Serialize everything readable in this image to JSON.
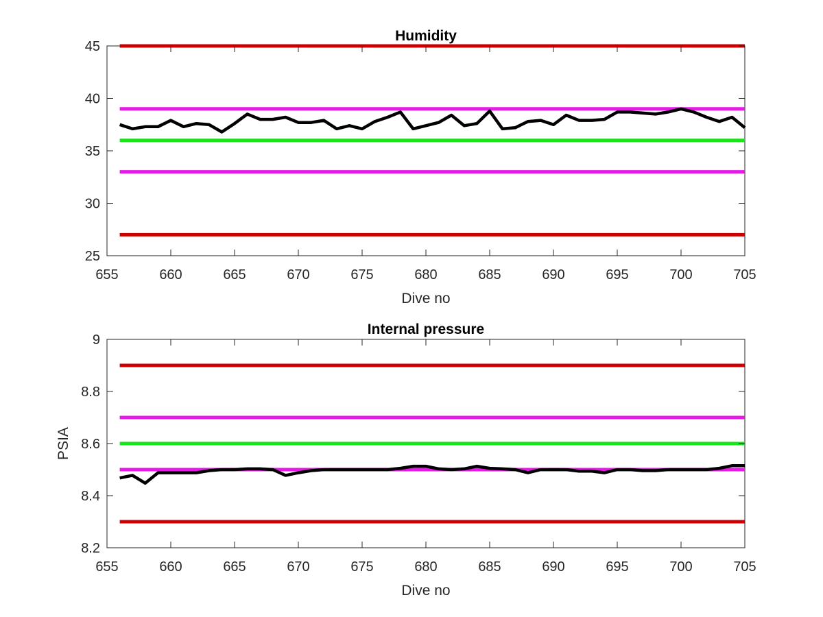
{
  "chart_data": [
    {
      "type": "line",
      "title": "Humidity",
      "xlabel": "Dive no",
      "ylabel": "",
      "xlim": [
        655,
        705
      ],
      "ylim": [
        25,
        45
      ],
      "xticks": [
        "655",
        "660",
        "665",
        "670",
        "675",
        "680",
        "685",
        "690",
        "695",
        "700",
        "705"
      ],
      "yticks": [
        "25",
        "30",
        "35",
        "40",
        "45"
      ],
      "grid": false,
      "series": [
        {
          "x": [
            656,
            657,
            658,
            659,
            660,
            661,
            662,
            663,
            664,
            665,
            666,
            667,
            668,
            669,
            670,
            671,
            672,
            673,
            674,
            675,
            676,
            677,
            678,
            679,
            680,
            681,
            682,
            683,
            684,
            685,
            686,
            687,
            688,
            689,
            690,
            691,
            692,
            693,
            694,
            695,
            696,
            697,
            698,
            699,
            700,
            701,
            702,
            703,
            704,
            705
          ],
          "values": [
            37.5,
            37.1,
            37.3,
            37.3,
            37.9,
            37.3,
            37.6,
            37.5,
            36.8,
            37.6,
            38.5,
            38.0,
            38.0,
            38.2,
            37.7,
            37.7,
            37.9,
            37.1,
            37.4,
            37.1,
            37.8,
            38.2,
            38.7,
            37.1,
            37.4,
            37.7,
            38.4,
            37.4,
            37.6,
            38.8,
            37.1,
            37.2,
            37.8,
            37.9,
            37.5,
            38.4,
            37.9,
            37.9,
            38.0,
            38.7,
            38.7,
            38.6,
            38.5,
            38.7,
            39.0,
            38.7,
            38.2,
            37.8,
            38.2,
            37.2
          ],
          "color": "#000000"
        }
      ],
      "reference_lines": [
        {
          "y": 45,
          "color": "#cc0000"
        },
        {
          "y": 39,
          "color": "#e619e6"
        },
        {
          "y": 36,
          "color": "#19e619"
        },
        {
          "y": 33,
          "color": "#e619e6"
        },
        {
          "y": 27,
          "color": "#cc0000"
        }
      ]
    },
    {
      "type": "line",
      "title": "Internal pressure",
      "xlabel": "Dive no",
      "ylabel": "PSIA",
      "xlim": [
        655,
        705
      ],
      "ylim": [
        8.2,
        9.0
      ],
      "xticks": [
        "655",
        "660",
        "665",
        "670",
        "675",
        "680",
        "685",
        "690",
        "695",
        "700",
        "705"
      ],
      "yticks": [
        "8.2",
        "8.4",
        "8.6",
        "8.8",
        "9"
      ],
      "grid": false,
      "series": [
        {
          "x": [
            656,
            657,
            658,
            659,
            660,
            661,
            662,
            663,
            664,
            665,
            666,
            667,
            668,
            669,
            670,
            671,
            672,
            673,
            674,
            675,
            676,
            677,
            678,
            679,
            680,
            681,
            682,
            683,
            684,
            685,
            686,
            687,
            688,
            689,
            690,
            691,
            692,
            693,
            694,
            695,
            696,
            697,
            698,
            699,
            700,
            701,
            702,
            703,
            704,
            705
          ],
          "values": [
            8.468,
            8.478,
            8.448,
            8.488,
            8.488,
            8.488,
            8.488,
            8.496,
            8.5,
            8.5,
            8.503,
            8.503,
            8.5,
            8.478,
            8.488,
            8.496,
            8.5,
            8.5,
            8.5,
            8.5,
            8.5,
            8.5,
            8.505,
            8.513,
            8.513,
            8.503,
            8.5,
            8.503,
            8.513,
            8.505,
            8.503,
            8.5,
            8.488,
            8.5,
            8.5,
            8.5,
            8.494,
            8.494,
            8.488,
            8.5,
            8.5,
            8.496,
            8.496,
            8.5,
            8.5,
            8.5,
            8.5,
            8.505,
            8.515,
            8.515
          ],
          "color": "#000000"
        }
      ],
      "reference_lines": [
        {
          "y": 8.9,
          "color": "#cc0000"
        },
        {
          "y": 8.7,
          "color": "#e619e6"
        },
        {
          "y": 8.6,
          "color": "#19e619"
        },
        {
          "y": 8.5,
          "color": "#e619e6"
        },
        {
          "y": 8.3,
          "color": "#cc0000"
        }
      ]
    }
  ]
}
